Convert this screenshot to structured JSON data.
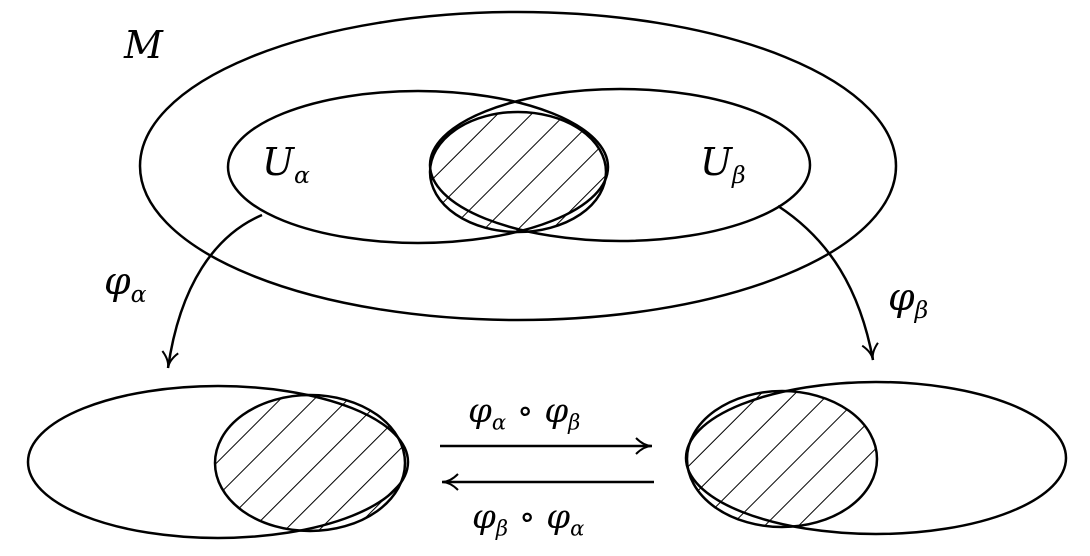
{
  "labels": {
    "manifold": "M",
    "chart_u_alpha": {
      "base": "U",
      "sub": "α"
    },
    "chart_u_beta": {
      "base": "U",
      "sub": "β"
    },
    "map_phi_alpha": {
      "base": "φ",
      "sub": "α"
    },
    "map_phi_beta": {
      "base": "φ",
      "sub": "β"
    },
    "transition_forward": {
      "a": "φ",
      "a_sub": "α",
      "op": "∘",
      "b": "φ",
      "b_sub": "β"
    },
    "transition_backward": {
      "a": "φ",
      "a_sub": "β",
      "op": "∘",
      "b": "φ",
      "b_sub": "α"
    }
  },
  "colors": {
    "stroke": "#000000",
    "fill": "#ffffff"
  }
}
